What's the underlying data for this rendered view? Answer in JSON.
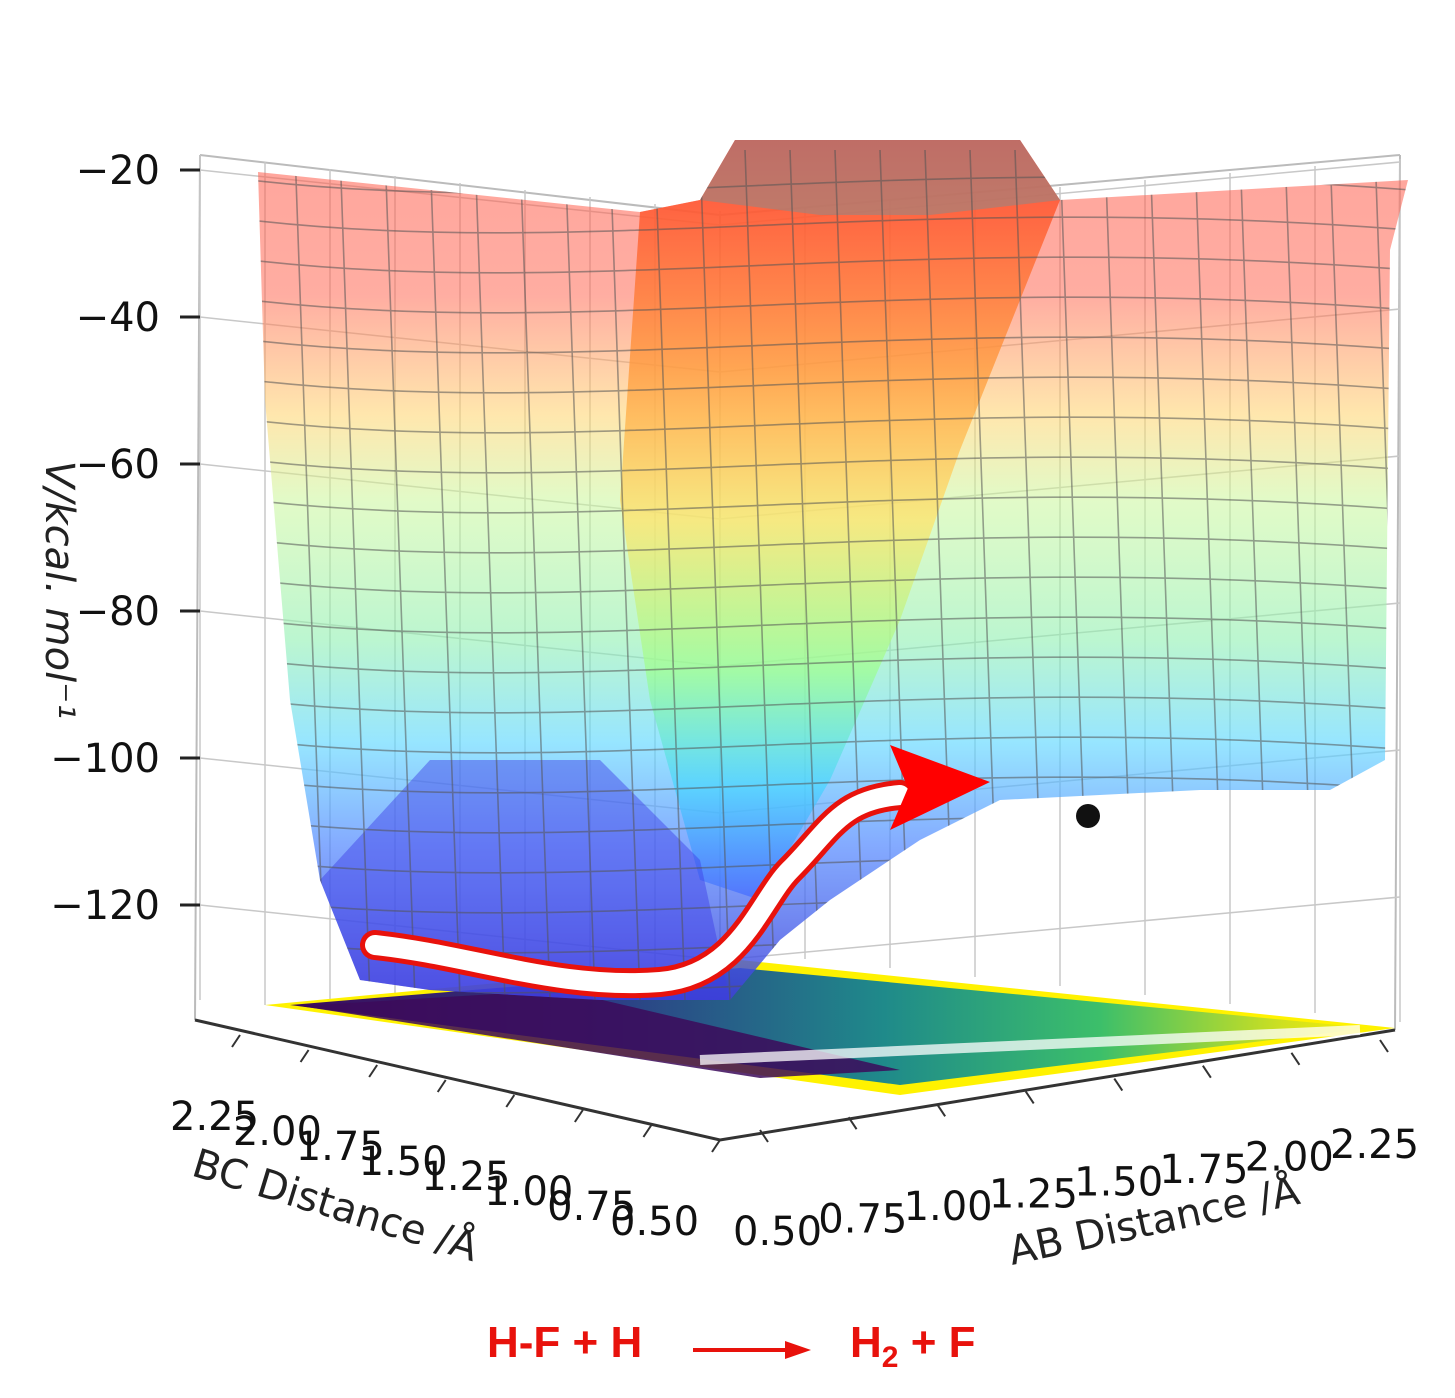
{
  "chart_data": {
    "type": "surface3d",
    "title": "",
    "zlabel": "V/kcal. mol⁻¹",
    "xlabel": "AB Distance /Å",
    "ylabel": "BC Distance /Å",
    "zlim": [
      -135,
      -18
    ],
    "z_ticks": [
      "−20",
      "−40",
      "−60",
      "−80",
      "−100",
      "−120"
    ],
    "z_tick_values": [
      -20,
      -40,
      -60,
      -80,
      -100,
      -120
    ],
    "x_ticks": [
      "0.50",
      "0.75",
      "1.00",
      "1.25",
      "1.50",
      "1.75",
      "2.00",
      "2.25"
    ],
    "y_ticks": [
      "2.25",
      "2.00",
      "1.75",
      "1.50",
      "1.25",
      "1.00",
      "0.75",
      "0.50"
    ],
    "colormap_surface": [
      "#4a5cff",
      "#3fa0ff",
      "#46e6ff",
      "#b6ff8e",
      "#ffe36a",
      "#ff9a3d",
      "#ff3b2a"
    ],
    "colormap_floor": [
      "#3c0a5a",
      "#2c5f8e",
      "#1f9a8a",
      "#4cc46a",
      "#d8e21c",
      "#fff200"
    ],
    "reactant_well_kcal": -130,
    "product_well_kcal": -102,
    "minimum_marker": "black-dot",
    "path_colors": {
      "fill": "#ffffff",
      "outline": "#e8120c",
      "arrow": "#ff0000"
    }
  },
  "caption": {
    "reactants": "H-F + H",
    "product_h2": "H",
    "product_sub": "2",
    "product_rest": " + F",
    "color": "#e8120c"
  }
}
